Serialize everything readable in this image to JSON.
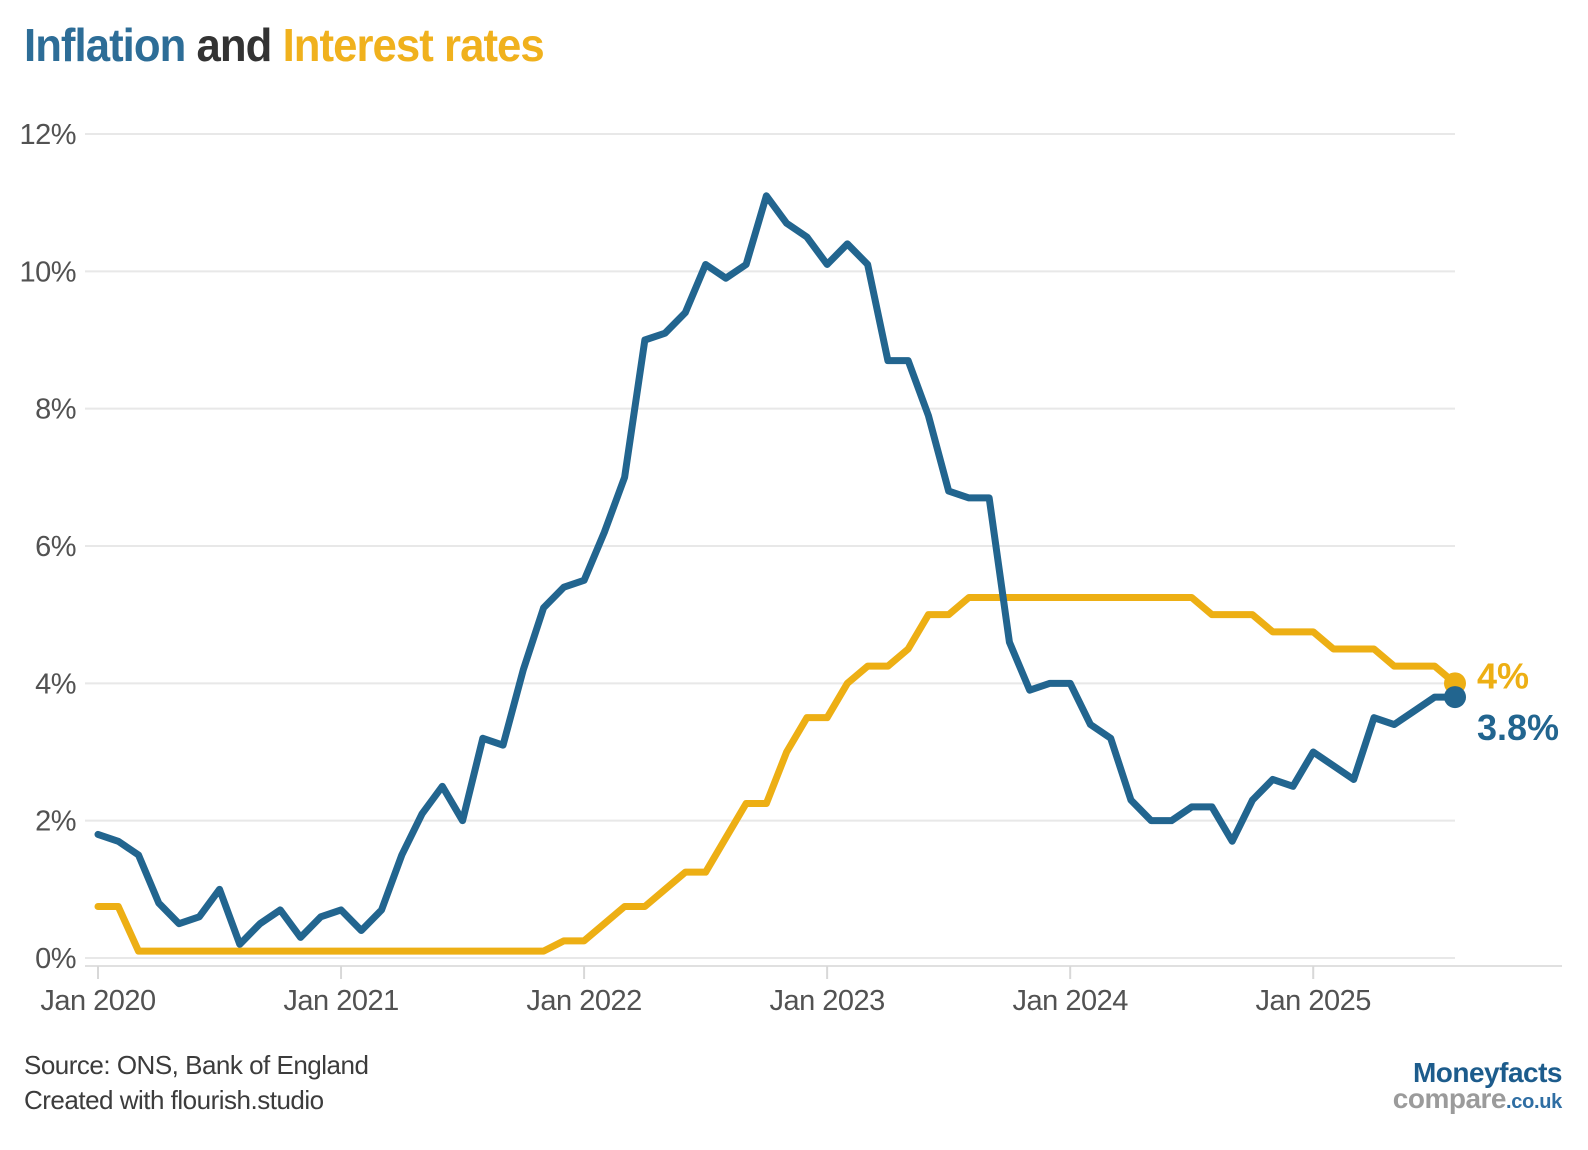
{
  "title": {
    "inflation": "Inflation",
    "and": " and ",
    "interest": "Interest rates"
  },
  "colors": {
    "inflation_line": "#22658f",
    "interest_line": "#edaf14",
    "title_inflation": "#2d6d97",
    "title_and": "#333333",
    "title_interest": "#f0b11d",
    "axis_text": "#525252",
    "gridline": "#e8e8e8"
  },
  "chart_data": {
    "type": "line",
    "title": "Inflation and Interest rates",
    "xlabel": "",
    "ylabel": "",
    "ylim": [
      0,
      12
    ],
    "grid": "horizontal",
    "legend_position": "none (series named in colored title; values labeled at line ends)",
    "x_unit": "month",
    "x_start": "Jan 2020",
    "x_end": "Aug 2025",
    "x_ticks": [
      {
        "label": "Jan 2020",
        "month_index": 0
      },
      {
        "label": "Jan 2021",
        "month_index": 12
      },
      {
        "label": "Jan 2022",
        "month_index": 24
      },
      {
        "label": "Jan 2023",
        "month_index": 36
      },
      {
        "label": "Jan 2024",
        "month_index": 48
      },
      {
        "label": "Jan 2025",
        "month_index": 60
      }
    ],
    "y_ticks": [
      {
        "label": "0%",
        "value": 0
      },
      {
        "label": "2%",
        "value": 2
      },
      {
        "label": "4%",
        "value": 4
      },
      {
        "label": "6%",
        "value": 6
      },
      {
        "label": "8%",
        "value": 8
      },
      {
        "label": "10%",
        "value": 10
      },
      {
        "label": "12%",
        "value": 12
      }
    ],
    "series": [
      {
        "name": "Interest rates",
        "color": "#edaf14",
        "end_label": "4%",
        "values": [
          0.75,
          0.75,
          0.1,
          0.1,
          0.1,
          0.1,
          0.1,
          0.1,
          0.1,
          0.1,
          0.1,
          0.1,
          0.1,
          0.1,
          0.1,
          0.1,
          0.1,
          0.1,
          0.1,
          0.1,
          0.1,
          0.1,
          0.1,
          0.25,
          0.25,
          0.5,
          0.75,
          0.75,
          1.0,
          1.25,
          1.25,
          1.75,
          2.25,
          2.25,
          3.0,
          3.5,
          3.5,
          4.0,
          4.25,
          4.25,
          4.5,
          5.0,
          5.0,
          5.25,
          5.25,
          5.25,
          5.25,
          5.25,
          5.25,
          5.25,
          5.25,
          5.25,
          5.25,
          5.25,
          5.25,
          5.0,
          5.0,
          5.0,
          4.75,
          4.75,
          4.75,
          4.5,
          4.5,
          4.5,
          4.25,
          4.25,
          4.25,
          4.0
        ]
      },
      {
        "name": "Inflation",
        "color": "#22658f",
        "end_label": "3.8%",
        "values": [
          1.8,
          1.7,
          1.5,
          0.8,
          0.5,
          0.6,
          1.0,
          0.2,
          0.5,
          0.7,
          0.3,
          0.6,
          0.7,
          0.4,
          0.7,
          1.5,
          2.1,
          2.5,
          2.0,
          3.2,
          3.1,
          4.2,
          5.1,
          5.4,
          5.5,
          6.2,
          7.0,
          9.0,
          9.1,
          9.4,
          10.1,
          9.9,
          10.1,
          11.1,
          10.7,
          10.5,
          10.1,
          10.4,
          10.1,
          8.7,
          8.7,
          7.9,
          6.8,
          6.7,
          6.7,
          4.6,
          3.9,
          4.0,
          4.0,
          3.4,
          3.2,
          2.3,
          2.0,
          2.0,
          2.2,
          2.2,
          1.7,
          2.3,
          2.6,
          2.5,
          3.0,
          2.8,
          2.6,
          3.5,
          3.4,
          3.6,
          3.8,
          3.8
        ]
      }
    ]
  },
  "footer": {
    "source": "Source: ONS, Bank of England",
    "credit": "Created with flourish.studio"
  },
  "logo": {
    "name": "Moneyfacts",
    "compare": "compare",
    "tld": ".co.uk"
  }
}
